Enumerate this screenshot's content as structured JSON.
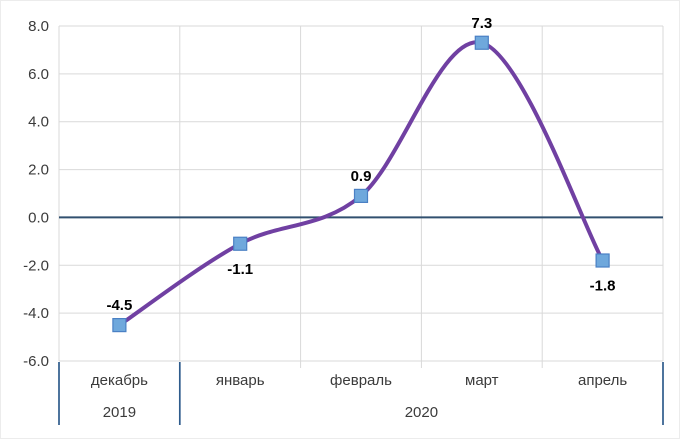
{
  "chart_data": {
    "type": "line",
    "title": "",
    "xlabel": "",
    "ylabel": "",
    "categories": [
      "декабрь",
      "январь",
      "февраль",
      "март",
      "апрель"
    ],
    "category_groups": [
      {
        "label": "2019",
        "start": 0,
        "count": 1
      },
      {
        "label": "2020",
        "start": 1,
        "count": 4
      }
    ],
    "series": [
      {
        "name": "series-1",
        "values": [
          -4.5,
          -1.1,
          0.9,
          7.3,
          -1.8
        ]
      }
    ],
    "data_labels": [
      "-4.5",
      "-1.1",
      "0.9",
      "7.3",
      "-1.8"
    ],
    "data_label_positions": [
      "above",
      "below",
      "above",
      "above",
      "below"
    ],
    "ylim": [
      -6.0,
      8.0
    ],
    "ytick_step": 2.0,
    "ytick_labels": [
      "8.0",
      "6.0",
      "4.0",
      "2.0",
      "0.0",
      "-2.0",
      "-4.0",
      "-6.0"
    ],
    "grid": true,
    "legend": "none",
    "line_smooth": true,
    "colors": {
      "line": "#7040A2",
      "marker_fill": "#6FA8DC",
      "marker_border": "#4A80C4",
      "zero_line": "#31506F",
      "gridline": "#D9D9D9",
      "axis_separator": "#2E5B8C",
      "data_label_text": "#000000",
      "tick_text": "#3B3B3B"
    }
  }
}
